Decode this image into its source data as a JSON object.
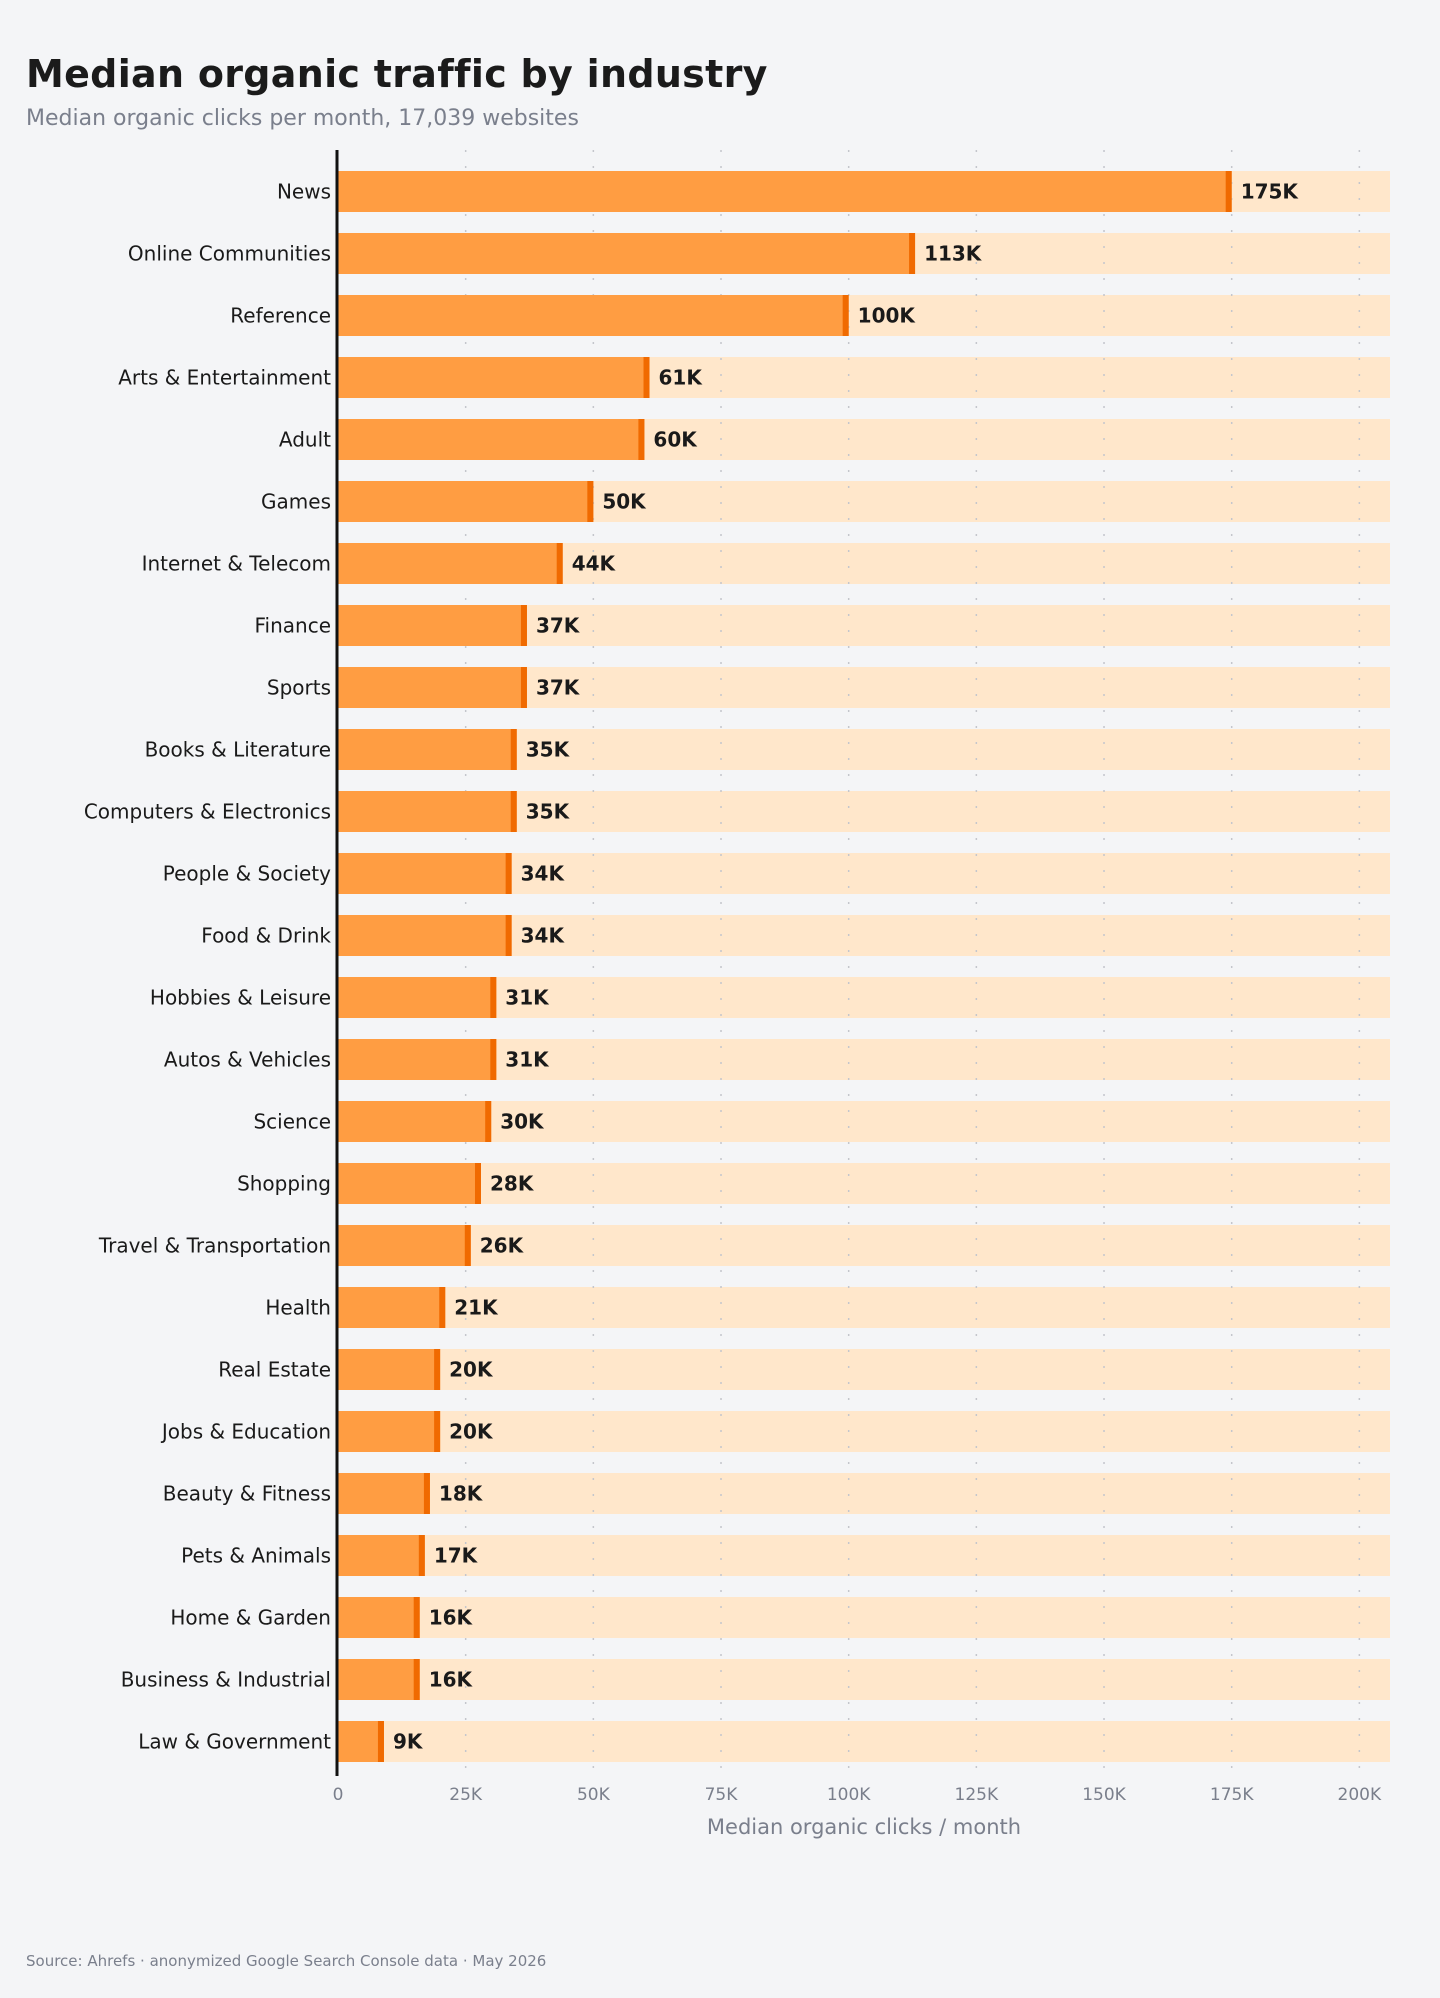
{
  "title": "Median organic traffic by industry",
  "subtitle": "Median organic clicks per month, 17,039 websites",
  "source": "Source: Ahrefs · anonymized Google Search Console data · May 2026",
  "colors": {
    "bar": "#ff9d42",
    "bar_cap": "#f06a00",
    "track": "#ffe7cb",
    "axis": "#111111",
    "grid": "#c4c6cc",
    "tick_text": "#7a7f8c",
    "label_text": "#1a1a1a"
  },
  "chart_data": {
    "type": "bar",
    "orientation": "horizontal",
    "xlabel": "Median organic clicks / month",
    "ylabel": "",
    "xlim": [
      0,
      206000
    ],
    "xticks": [
      0,
      25000,
      50000,
      75000,
      100000,
      125000,
      150000,
      175000,
      200000
    ],
    "xtick_labels": [
      "0",
      "25K",
      "50K",
      "75K",
      "100K",
      "125K",
      "150K",
      "175K",
      "200K"
    ],
    "grid": "vertical dotted",
    "categories": [
      "News",
      "Online Communities",
      "Reference",
      "Arts & Entertainment",
      "Adult",
      "Games",
      "Internet & Telecom",
      "Finance",
      "Sports",
      "Books & Literature",
      "Computers & Electronics",
      "People & Society",
      "Food & Drink",
      "Hobbies & Leisure",
      "Autos & Vehicles",
      "Science",
      "Shopping",
      "Travel & Transportation",
      "Health",
      "Real Estate",
      "Jobs & Education",
      "Beauty & Fitness",
      "Pets & Animals",
      "Home & Garden",
      "Business & Industrial",
      "Law & Government"
    ],
    "values": [
      175000,
      113000,
      100000,
      61000,
      60000,
      50000,
      44000,
      37000,
      37000,
      35000,
      35000,
      34000,
      34000,
      31000,
      31000,
      30000,
      28000,
      26000,
      21000,
      20000,
      20000,
      18000,
      17000,
      16000,
      16000,
      9000
    ],
    "data_labels": [
      "175K",
      "113K",
      "100K",
      "61K",
      "60K",
      "50K",
      "44K",
      "37K",
      "37K",
      "35K",
      "35K",
      "34K",
      "34K",
      "31K",
      "31K",
      "30K",
      "28K",
      "26K",
      "21K",
      "20K",
      "20K",
      "18K",
      "17K",
      "16K",
      "16K",
      "9K"
    ]
  }
}
